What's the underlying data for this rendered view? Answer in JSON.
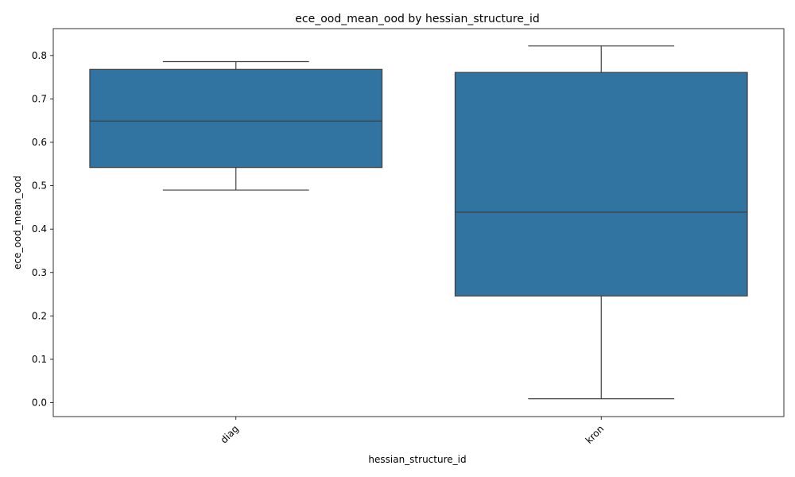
{
  "chart_data": {
    "type": "box",
    "title": "ece_ood_mean_ood by hessian_structure_id",
    "xlabel": "hessian_structure_id",
    "ylabel": "ece_ood_mean_ood",
    "categories": [
      "diag",
      "kron"
    ],
    "boxes": [
      {
        "category": "diag",
        "whisker_low": 0.49,
        "q1": 0.542,
        "median": 0.649,
        "q3": 0.768,
        "whisker_high": 0.786
      },
      {
        "category": "kron",
        "whisker_low": 0.009,
        "q1": 0.246,
        "median": 0.439,
        "q3": 0.761,
        "whisker_high": 0.822
      }
    ],
    "yticks": [
      "0.0",
      "0.1",
      "0.2",
      "0.3",
      "0.4",
      "0.5",
      "0.6",
      "0.7",
      "0.8"
    ],
    "ylim": [
      -0.032,
      0.862
    ],
    "grid": false,
    "colors": {
      "box_fill": "#3274a1",
      "line": "#3f3f3f"
    }
  }
}
